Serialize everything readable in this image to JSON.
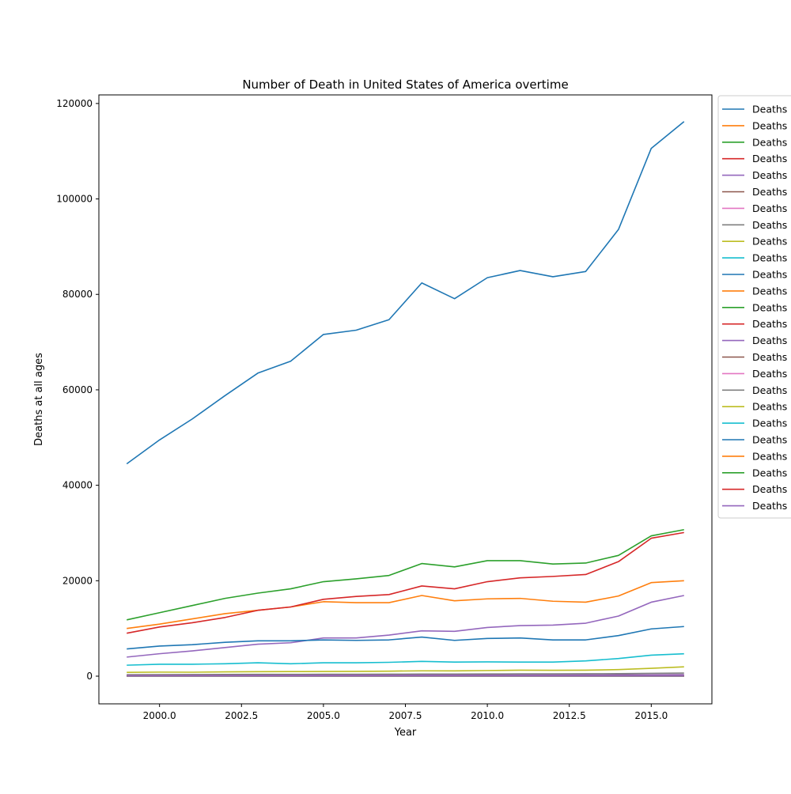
{
  "chart_data": {
    "type": "line",
    "title": "Number of Death in United States of America overtime",
    "xlabel": "Year",
    "ylabel": "Deaths at all ages",
    "xlim": [
      1998.15,
      2016.85
    ],
    "ylim": [
      -5800,
      121800
    ],
    "x_ticks": [
      {
        "value": 2000,
        "label": "2000.0"
      },
      {
        "value": 2002.5,
        "label": "2002.5"
      },
      {
        "value": 2005,
        "label": "2005.0"
      },
      {
        "value": 2007.5,
        "label": "2007.5"
      },
      {
        "value": 2010,
        "label": "2010.0"
      },
      {
        "value": 2012.5,
        "label": "2012.5"
      },
      {
        "value": 2015,
        "label": "2015.0"
      }
    ],
    "y_ticks": [
      {
        "value": 0,
        "label": "0"
      },
      {
        "value": 20000,
        "label": "20000"
      },
      {
        "value": 40000,
        "label": "40000"
      },
      {
        "value": 60000,
        "label": "60000"
      },
      {
        "value": 80000,
        "label": "80000"
      },
      {
        "value": 100000,
        "label": "100000"
      },
      {
        "value": 120000,
        "label": "120000"
      }
    ],
    "grid": false,
    "legend_position": "outside top-right",
    "x": [
      1999,
      2000,
      2001,
      2002,
      2003,
      2004,
      2005,
      2006,
      2007,
      2008,
      2009,
      2010,
      2011,
      2012,
      2013,
      2014,
      2015,
      2016
    ],
    "series": [
      {
        "name": "Deaths",
        "color": "#1f77b4",
        "values": [
          44500,
          49500,
          53900,
          58800,
          63500,
          66000,
          71600,
          72500,
          74700,
          82400,
          79100,
          83500,
          85000,
          83700,
          84800,
          93600,
          110600,
          116200
        ]
      },
      {
        "name": "Deaths",
        "color": "#ff7f0e",
        "values": [
          10000,
          10900,
          12000,
          13100,
          13800,
          14500,
          15600,
          15400,
          15400,
          16900,
          15800,
          16200,
          16300,
          15700,
          15500,
          16800,
          19600,
          20000
        ]
      },
      {
        "name": "Deaths",
        "color": "#2ca02c",
        "values": [
          11800,
          13300,
          14800,
          16300,
          17400,
          18300,
          19800,
          20400,
          21100,
          23600,
          22900,
          24200,
          24200,
          23500,
          23700,
          25300,
          29400,
          30700
        ]
      },
      {
        "name": "Deaths",
        "color": "#d62728",
        "values": [
          9000,
          10300,
          11200,
          12300,
          13800,
          14500,
          16100,
          16700,
          17100,
          18900,
          18300,
          19800,
          20600,
          20900,
          21300,
          24000,
          28900,
          30100
        ]
      },
      {
        "name": "Deaths",
        "color": "#9467bd",
        "values": [
          4000,
          4700,
          5300,
          6000,
          6700,
          7000,
          8000,
          8000,
          8600,
          9500,
          9400,
          10200,
          10600,
          10700,
          11100,
          12600,
          15500,
          16900
        ]
      },
      {
        "name": "Deaths",
        "color": "#8c564b",
        "values": [
          100,
          100,
          100,
          100,
          100,
          100,
          100,
          100,
          100,
          100,
          100,
          100,
          100,
          100,
          100,
          100,
          100,
          100
        ]
      },
      {
        "name": "Deaths",
        "color": "#e377c2",
        "values": [
          50,
          50,
          50,
          50,
          50,
          50,
          50,
          50,
          50,
          50,
          50,
          50,
          50,
          50,
          50,
          50,
          50,
          50
        ]
      },
      {
        "name": "Deaths",
        "color": "#7f7f7f",
        "values": [
          300,
          320,
          340,
          360,
          380,
          380,
          400,
          400,
          420,
          450,
          440,
          460,
          480,
          490,
          500,
          530,
          600,
          650
        ]
      },
      {
        "name": "Deaths",
        "color": "#bcbd22",
        "values": [
          800,
          850,
          830,
          900,
          950,
          960,
          980,
          1000,
          1050,
          1120,
          1100,
          1180,
          1250,
          1230,
          1250,
          1380,
          1650,
          1950
        ]
      },
      {
        "name": "Deaths",
        "color": "#17becf",
        "values": [
          2300,
          2500,
          2500,
          2600,
          2800,
          2600,
          2800,
          2800,
          2900,
          3100,
          2950,
          3000,
          2950,
          2950,
          3200,
          3700,
          4400,
          4700
        ]
      },
      {
        "name": "Deaths",
        "color": "#1f77b4",
        "values": [
          5700,
          6300,
          6600,
          7100,
          7400,
          7400,
          7600,
          7500,
          7600,
          8200,
          7500,
          7900,
          8000,
          7600,
          7600,
          8500,
          9900,
          10400
        ]
      },
      {
        "name": "Deaths",
        "color": "#ff7f0e",
        "values": [
          30,
          30,
          30,
          30,
          30,
          30,
          30,
          30,
          30,
          30,
          30,
          30,
          30,
          30,
          30,
          30,
          30,
          30
        ]
      },
      {
        "name": "Deaths",
        "color": "#2ca02c",
        "values": [
          60,
          60,
          60,
          60,
          60,
          60,
          60,
          60,
          60,
          60,
          60,
          60,
          60,
          60,
          60,
          60,
          60,
          60
        ]
      },
      {
        "name": "Deaths",
        "color": "#d62728",
        "values": [
          40,
          40,
          40,
          40,
          40,
          40,
          40,
          40,
          40,
          40,
          40,
          40,
          40,
          40,
          40,
          40,
          40,
          40
        ]
      },
      {
        "name": "Deaths",
        "color": "#9467bd",
        "values": [
          150,
          160,
          170,
          180,
          190,
          200,
          210,
          210,
          220,
          230,
          230,
          240,
          250,
          250,
          260,
          280,
          310,
          330
        ]
      },
      {
        "name": "Deaths",
        "color": "#8c564b",
        "values": [
          20,
          20,
          20,
          20,
          20,
          20,
          20,
          20,
          20,
          20,
          20,
          20,
          20,
          20,
          20,
          20,
          20,
          20
        ]
      },
      {
        "name": "Deaths",
        "color": "#e377c2",
        "values": [
          10,
          10,
          10,
          10,
          10,
          10,
          10,
          10,
          10,
          10,
          10,
          10,
          10,
          10,
          10,
          10,
          10,
          10
        ]
      },
      {
        "name": "Deaths",
        "color": "#7f7f7f",
        "values": [
          15,
          15,
          15,
          15,
          15,
          15,
          15,
          15,
          15,
          15,
          15,
          15,
          15,
          15,
          15,
          15,
          15,
          15
        ]
      },
      {
        "name": "Deaths",
        "color": "#bcbd22",
        "values": [
          25,
          25,
          25,
          25,
          25,
          25,
          25,
          25,
          25,
          25,
          25,
          25,
          25,
          25,
          25,
          25,
          25,
          25
        ]
      },
      {
        "name": "Deaths",
        "color": "#17becf",
        "values": [
          35,
          35,
          35,
          35,
          35,
          35,
          35,
          35,
          35,
          35,
          35,
          35,
          35,
          35,
          35,
          35,
          35,
          35
        ]
      },
      {
        "name": "Deaths",
        "color": "#1f77b4",
        "values": [
          45,
          45,
          45,
          45,
          45,
          45,
          45,
          45,
          45,
          45,
          45,
          45,
          45,
          45,
          45,
          45,
          45,
          45
        ]
      },
      {
        "name": "Deaths",
        "color": "#ff7f0e",
        "values": [
          55,
          55,
          55,
          55,
          55,
          55,
          55,
          55,
          55,
          55,
          55,
          55,
          55,
          55,
          55,
          55,
          55,
          55
        ]
      },
      {
        "name": "Deaths",
        "color": "#2ca02c",
        "values": [
          65,
          65,
          65,
          65,
          65,
          65,
          65,
          65,
          65,
          65,
          65,
          65,
          65,
          65,
          65,
          65,
          65,
          65
        ]
      },
      {
        "name": "Deaths",
        "color": "#d62728",
        "values": [
          70,
          70,
          70,
          70,
          70,
          70,
          70,
          70,
          70,
          70,
          70,
          70,
          70,
          70,
          70,
          70,
          70,
          70
        ]
      },
      {
        "name": "Deaths",
        "color": "#9467bd",
        "values": [
          80,
          80,
          80,
          80,
          80,
          80,
          80,
          80,
          80,
          80,
          80,
          80,
          80,
          80,
          80,
          80,
          80,
          80
        ]
      }
    ]
  }
}
